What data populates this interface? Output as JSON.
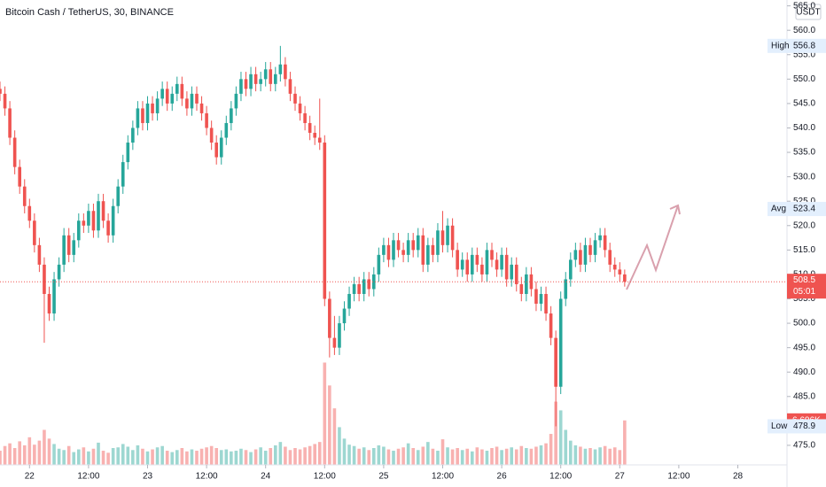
{
  "chart_data": {
    "type": "candlestick",
    "title": "Bitcoin Cash / TetherUS, 30, BINANCE",
    "currency": "USDT",
    "x": [
      0,
      1,
      2,
      3,
      4,
      5,
      6,
      7,
      8,
      9,
      10,
      11,
      12,
      13,
      14,
      15,
      16,
      17,
      18,
      19,
      20,
      21,
      22,
      23,
      24,
      25,
      26,
      27,
      28,
      29,
      30,
      31,
      32,
      33,
      34,
      35,
      36,
      37,
      38,
      39,
      40,
      41,
      42,
      43,
      44,
      45,
      46,
      47,
      48,
      49,
      50,
      51,
      52,
      53,
      54,
      55,
      56,
      57,
      58,
      59,
      60,
      61,
      62,
      63,
      64,
      65,
      66,
      67,
      68,
      69,
      70,
      71,
      72,
      73,
      74,
      75,
      76,
      77,
      78,
      79,
      80,
      81,
      82,
      83,
      84,
      85,
      86,
      87,
      88,
      89,
      90,
      91,
      92,
      93,
      94,
      95,
      96,
      97,
      98,
      99,
      100,
      101,
      102,
      103,
      104,
      105,
      106,
      107,
      108,
      109,
      110,
      111,
      112,
      113,
      114,
      115,
      116,
      117,
      118,
      119,
      120,
      121,
      122,
      123,
      124,
      125,
      126,
      127
    ],
    "open": [
      548,
      547,
      544,
      538,
      532,
      528,
      524,
      521,
      516,
      512,
      506,
      502,
      509,
      512,
      518,
      514,
      517,
      521,
      520,
      523,
      519,
      525,
      521,
      518,
      524,
      528,
      533,
      537,
      540,
      544,
      541,
      545,
      543,
      546,
      548,
      545,
      547,
      549,
      546,
      544,
      547,
      545,
      543,
      540,
      537,
      534,
      538,
      541,
      544,
      547,
      550,
      548,
      551,
      549,
      550,
      552,
      549,
      551,
      553,
      550,
      547,
      545,
      543,
      541,
      539,
      538,
      537,
      505,
      497,
      495,
      500,
      503,
      506,
      508,
      506,
      509,
      507,
      510,
      514,
      516,
      513,
      517,
      515,
      514,
      517,
      515,
      518,
      512,
      516,
      514,
      519,
      516,
      520,
      515,
      511,
      513,
      510,
      514,
      512,
      510,
      515,
      513,
      511,
      514,
      509,
      512,
      508,
      506,
      510,
      507,
      504,
      506,
      502,
      497,
      487,
      505,
      509,
      513,
      515,
      512,
      516,
      514,
      517,
      518,
      515,
      512,
      511,
      510
    ],
    "high": [
      549.5,
      548.5,
      545.5,
      539.5,
      533.5,
      529.5,
      525.5,
      522.5,
      517.5,
      513.5,
      507.5,
      510.5,
      513.5,
      519.5,
      519.5,
      518.5,
      522.5,
      522.5,
      524.5,
      524.5,
      526.5,
      526.5,
      522.5,
      525.5,
      529.5,
      534.5,
      538.5,
      541.5,
      545.5,
      545.5,
      546.5,
      546.5,
      547.5,
      549.5,
      549.5,
      548.5,
      550.5,
      550.5,
      547.5,
      548.5,
      548.5,
      546.5,
      544.5,
      541.5,
      538.5,
      539.5,
      542.5,
      545.5,
      548.5,
      551.5,
      551.5,
      552.5,
      552.5,
      551.5,
      553.5,
      553.5,
      552.5,
      556.8,
      554.5,
      551.5,
      548.5,
      546.5,
      544.5,
      542.5,
      540.5,
      546,
      538.5,
      506.5,
      501.5,
      501.5,
      504.5,
      507.5,
      509.5,
      509.5,
      510.5,
      510.5,
      511.5,
      515.5,
      517.5,
      517.5,
      518.5,
      518.5,
      516.5,
      518.5,
      518.5,
      519.5,
      519.5,
      517.5,
      517.5,
      520.5,
      523,
      521.5,
      521.5,
      516.5,
      514.5,
      514.5,
      515.5,
      515.5,
      513.5,
      516.5,
      516.5,
      514.5,
      515.5,
      515.5,
      513.5,
      513.5,
      509.5,
      511.5,
      511.5,
      508.5,
      507.5,
      507.5,
      503.5,
      498.5,
      506.5,
      510.5,
      514.5,
      516.5,
      516.5,
      517.5,
      517.5,
      518.5,
      519.5,
      519.5,
      516.5,
      513.5,
      512.5,
      511
    ],
    "low": [
      545.5,
      542.5,
      536.5,
      530.5,
      526.5,
      522.5,
      519.5,
      514.5,
      510.5,
      496,
      500.5,
      500.5,
      507.5,
      510.5,
      512.5,
      512.5,
      515.5,
      518.5,
      518.5,
      517.5,
      517.5,
      519.5,
      516.5,
      516.5,
      522.5,
      526.5,
      531.5,
      535.5,
      538.5,
      539.5,
      539.5,
      541.5,
      541.5,
      544.5,
      543.5,
      543.5,
      545.5,
      544.5,
      542.5,
      542.5,
      543.5,
      541.5,
      538.5,
      535.5,
      532.5,
      532.5,
      536.5,
      539.5,
      542.5,
      545.5,
      546.5,
      546.5,
      547.5,
      547.5,
      548.5,
      547.5,
      547.5,
      549.5,
      548.5,
      545.5,
      543.5,
      541.5,
      539.5,
      537.5,
      536.5,
      535.5,
      503.5,
      493,
      493.5,
      493.5,
      498.5,
      501.5,
      504.5,
      504.5,
      504.5,
      505.5,
      505.5,
      508.5,
      512.5,
      511.5,
      511.5,
      513.5,
      512.5,
      512.5,
      513.5,
      513.5,
      510.5,
      510.5,
      512.5,
      512.5,
      514.5,
      514.5,
      513.5,
      509.5,
      509.5,
      508.5,
      508.5,
      510.5,
      508.5,
      508.5,
      511.5,
      509.5,
      509.5,
      507.5,
      507.5,
      506.5,
      504.5,
      504.5,
      505.5,
      502.5,
      502.5,
      500.5,
      495.5,
      478.9,
      485.5,
      503.5,
      507.5,
      511.5,
      510.5,
      510.5,
      512.5,
      512.5,
      515.5,
      513.5,
      510.5,
      509.5,
      508.5,
      507.5
    ],
    "close": [
      547,
      544,
      538,
      532,
      528,
      524,
      521,
      516,
      512,
      506,
      502,
      509,
      512,
      518,
      514,
      517,
      521,
      520,
      523,
      519,
      525,
      521,
      518,
      524,
      528,
      533,
      537,
      540,
      544,
      541,
      545,
      543,
      546,
      548,
      545,
      547,
      549,
      546,
      544,
      547,
      545,
      543,
      540,
      537,
      534,
      538,
      541,
      544,
      547,
      550,
      548,
      551,
      549,
      550,
      552,
      549,
      551,
      553,
      550,
      547,
      545,
      543,
      541,
      539,
      538,
      537,
      505,
      497,
      495,
      500,
      503,
      506,
      508,
      506,
      509,
      507,
      510,
      514,
      516,
      513,
      517,
      515,
      514,
      517,
      515,
      518,
      512,
      516,
      514,
      519,
      516,
      520,
      515,
      511,
      513,
      510,
      514,
      512,
      510,
      515,
      513,
      511,
      514,
      509,
      512,
      508,
      506,
      510,
      507,
      504,
      506,
      502,
      497,
      487,
      505,
      509,
      513,
      515,
      512,
      516,
      514,
      517,
      518,
      515,
      512,
      511,
      510,
      508.5
    ],
    "volume": [
      2100,
      2800,
      3200,
      2500,
      3500,
      2900,
      4100,
      3000,
      3600,
      5200,
      3900,
      3100,
      2400,
      2200,
      2800,
      1900,
      2300,
      2600,
      2000,
      2400,
      3300,
      2100,
      1800,
      2500,
      2600,
      3100,
      2700,
      2200,
      2900,
      2400,
      2000,
      2300,
      2600,
      2800,
      2100,
      1900,
      2200,
      2500,
      2000,
      2300,
      2100,
      2400,
      2600,
      2800,
      2500,
      2200,
      2300,
      2000,
      2100,
      2400,
      2200,
      1900,
      2300,
      2600,
      2100,
      2500,
      2900,
      3400,
      2700,
      2200,
      2500,
      2300,
      2600,
      2800,
      3100,
      3400,
      15200,
      11800,
      8400,
      5600,
      3900,
      3000,
      2800,
      2400,
      2600,
      2200,
      2500,
      2900,
      2700,
      2300,
      2100,
      2400,
      2600,
      3200,
      2500,
      2200,
      2700,
      3400,
      2400,
      2100,
      3800,
      2600,
      2300,
      2500,
      2200,
      2400,
      2000,
      2600,
      2300,
      2100,
      2500,
      2700,
      2200,
      2400,
      2600,
      2300,
      2800,
      2500,
      2400,
      2700,
      2900,
      3200,
      4600,
      9400,
      8100,
      5200,
      3600,
      2900,
      2700,
      2400,
      2500,
      2300,
      2600,
      2800,
      2400,
      2600,
      2200,
      6606
    ],
    "last_volume_label": "6.606K",
    "countdown": "05:01",
    "up_color": "#26a69a",
    "down_color": "#ef5350",
    "xlim": [
      0,
      160
    ],
    "ylim": [
      471,
      566.2
    ],
    "vlim": [
      0,
      50000
    ],
    "xticks": [
      {
        "value": 6,
        "label": "22"
      },
      {
        "value": 18,
        "label": "12:00"
      },
      {
        "value": 30,
        "label": "23"
      },
      {
        "value": 42,
        "label": "12:00"
      },
      {
        "value": 54,
        "label": "24"
      },
      {
        "value": 66,
        "label": "12:00"
      },
      {
        "value": 78,
        "label": "25"
      },
      {
        "value": 90,
        "label": "12:00"
      },
      {
        "value": 102,
        "label": "26"
      },
      {
        "value": 114,
        "label": "12:00"
      },
      {
        "value": 126,
        "label": "27"
      },
      {
        "value": 138,
        "label": "12:00"
      },
      {
        "value": 150,
        "label": "28"
      }
    ],
    "yticks": [
      {
        "value": 475,
        "label": "475.0"
      },
      {
        "value": 480,
        "label": "480.0"
      },
      {
        "value": 485,
        "label": "485.0"
      },
      {
        "value": 490,
        "label": "490.0"
      },
      {
        "value": 495,
        "label": "495.0"
      },
      {
        "value": 500,
        "label": "500.0"
      },
      {
        "value": 505,
        "label": "505.0"
      },
      {
        "value": 510,
        "label": "510.0"
      },
      {
        "value": 515,
        "label": "515.0"
      },
      {
        "value": 520,
        "label": "520.0"
      },
      {
        "value": 525,
        "label": "525.0"
      },
      {
        "value": 530,
        "label": "530.0"
      },
      {
        "value": 535,
        "label": "535.0"
      },
      {
        "value": 540,
        "label": "540.0"
      },
      {
        "value": 545,
        "label": "545.0"
      },
      {
        "value": 550,
        "label": "550.0"
      },
      {
        "value": 555,
        "label": "555.0"
      },
      {
        "value": 560,
        "label": "560.0"
      },
      {
        "value": 565,
        "label": "565.0"
      }
    ],
    "stats": [
      {
        "name": "High",
        "value": 556.8
      },
      {
        "name": "Avg",
        "value": 523.4
      },
      {
        "name": "Low",
        "value": 478.9
      }
    ]
  }
}
